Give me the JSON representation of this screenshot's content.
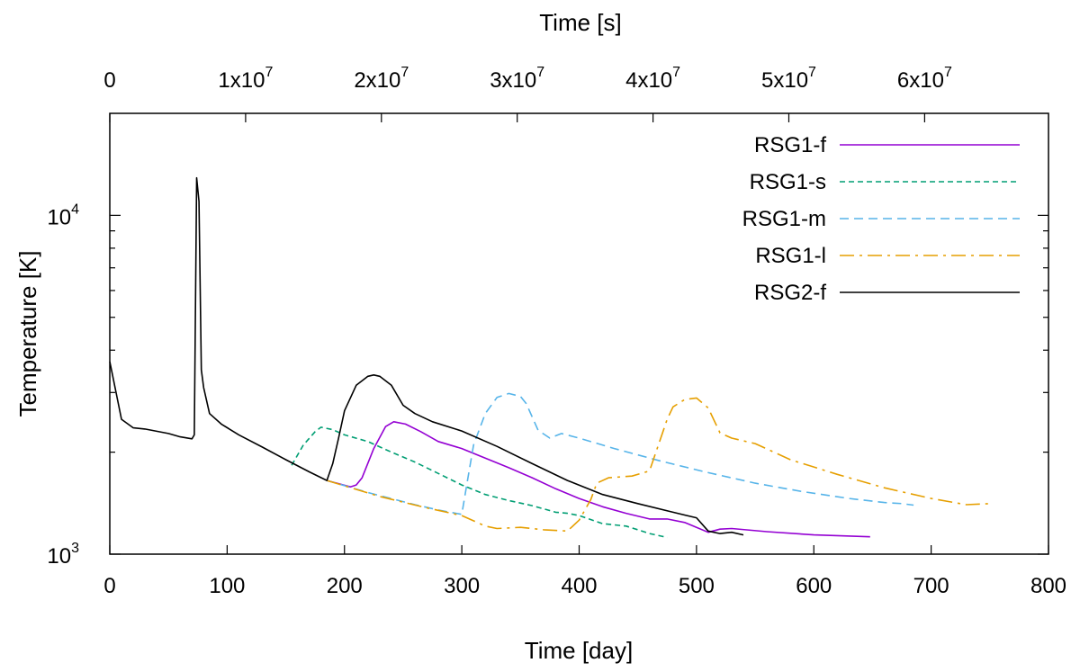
{
  "chart_data": {
    "type": "line",
    "xlabel": "Time [day]",
    "x2label": "Time [s]",
    "ylabel": "Temperature [K]",
    "xlim": [
      0,
      800
    ],
    "ylim": [
      1000,
      20000
    ],
    "yscale": "log",
    "grid": false,
    "legend_position": "top-right",
    "x_ticks": [
      {
        "value": 0,
        "label": "0"
      },
      {
        "value": 100,
        "label": "100"
      },
      {
        "value": 200,
        "label": "200"
      },
      {
        "value": 300,
        "label": "300"
      },
      {
        "value": 400,
        "label": "400"
      },
      {
        "value": 500,
        "label": "500"
      },
      {
        "value": 600,
        "label": "600"
      },
      {
        "value": 700,
        "label": "700"
      },
      {
        "value": 800,
        "label": "800"
      }
    ],
    "x2_ticks": [
      {
        "value_s": 0,
        "base": "0",
        "exp": ""
      },
      {
        "value_s": 10000000,
        "base": "1x10",
        "exp": "7"
      },
      {
        "value_s": 20000000,
        "base": "2x10",
        "exp": "7"
      },
      {
        "value_s": 30000000,
        "base": "3x10",
        "exp": "7"
      },
      {
        "value_s": 40000000,
        "base": "4x10",
        "exp": "7"
      },
      {
        "value_s": 50000000,
        "base": "5x10",
        "exp": "7"
      },
      {
        "value_s": 60000000,
        "base": "6x10",
        "exp": "7"
      }
    ],
    "y_ticks": [
      {
        "value": 1000,
        "base": "10",
        "exp": "3"
      },
      {
        "value": 10000,
        "base": "10",
        "exp": "4"
      }
    ],
    "series": [
      {
        "name": "RSG1-f",
        "color": "#9400d3",
        "dash": "solid",
        "x": [
          185,
          205,
          210,
          215,
          225,
          235,
          242,
          252,
          265,
          280,
          300,
          320,
          340,
          360,
          380,
          400,
          420,
          440,
          460,
          475,
          490,
          500,
          510,
          520,
          530,
          560,
          600,
          648
        ],
        "y": [
          1650,
          1580,
          1600,
          1680,
          2050,
          2380,
          2460,
          2420,
          2300,
          2150,
          2050,
          1920,
          1800,
          1680,
          1560,
          1460,
          1380,
          1320,
          1270,
          1270,
          1240,
          1200,
          1160,
          1185,
          1190,
          1165,
          1140,
          1125
        ]
      },
      {
        "name": "RSG1-s",
        "color": "#009e73",
        "dash": "6,4",
        "x": [
          155,
          165,
          175,
          180,
          190,
          200,
          220,
          240,
          260,
          280,
          300,
          320,
          340,
          360,
          380,
          390,
          400,
          420,
          440,
          450,
          460,
          470,
          475
        ],
        "y": [
          1830,
          2100,
          2300,
          2370,
          2330,
          2250,
          2150,
          2000,
          1870,
          1730,
          1600,
          1500,
          1440,
          1390,
          1330,
          1320,
          1300,
          1230,
          1210,
          1180,
          1150,
          1130,
          1120
        ]
      },
      {
        "name": "RSG1-m",
        "color": "#56b4e9",
        "dash": "10,6",
        "x": [
          185,
          220,
          260,
          280,
          300,
          305,
          310,
          320,
          330,
          340,
          350,
          355,
          365,
          375,
          385,
          400,
          430,
          470,
          510,
          550,
          590,
          630,
          660,
          675,
          685
        ],
        "y": [
          1650,
          1520,
          1400,
          1350,
          1310,
          1660,
          2100,
          2600,
          2900,
          2980,
          2920,
          2780,
          2320,
          2200,
          2270,
          2200,
          2050,
          1880,
          1740,
          1620,
          1530,
          1460,
          1420,
          1410,
          1395
        ]
      },
      {
        "name": "RSG1-l",
        "color": "#e69f00",
        "dash": "16,6,3,6",
        "x": [
          185,
          230,
          270,
          300,
          320,
          330,
          350,
          370,
          390,
          400,
          410,
          415,
          425,
          445,
          460,
          475,
          480,
          490,
          500,
          510,
          520,
          530,
          550,
          580,
          620,
          660,
          700,
          730,
          750
        ],
        "y": [
          1650,
          1480,
          1370,
          1300,
          1210,
          1190,
          1200,
          1180,
          1170,
          1260,
          1450,
          1620,
          1680,
          1700,
          1760,
          2500,
          2720,
          2860,
          2890,
          2700,
          2280,
          2200,
          2120,
          1900,
          1720,
          1570,
          1460,
          1400,
          1410
        ]
      },
      {
        "name": "RSG2-f",
        "color": "#000000",
        "dash": "solid",
        "x": [
          0,
          10,
          20,
          30,
          50,
          60,
          70,
          72,
          74,
          76,
          78,
          80,
          85,
          95,
          110,
          130,
          150,
          170,
          185,
          190,
          195,
          200,
          210,
          220,
          225,
          230,
          240,
          250,
          260,
          275,
          300,
          330,
          360,
          390,
          420,
          450,
          480,
          500,
          510,
          520,
          530,
          540
        ],
        "y": [
          3700,
          2500,
          2360,
          2340,
          2270,
          2220,
          2190,
          2250,
          12900,
          11000,
          3500,
          3100,
          2600,
          2420,
          2250,
          2070,
          1900,
          1750,
          1650,
          1850,
          2200,
          2650,
          3150,
          3350,
          3380,
          3350,
          3150,
          2750,
          2600,
          2460,
          2310,
          2080,
          1850,
          1650,
          1500,
          1410,
          1330,
          1280,
          1170,
          1150,
          1160,
          1140
        ]
      }
    ]
  }
}
